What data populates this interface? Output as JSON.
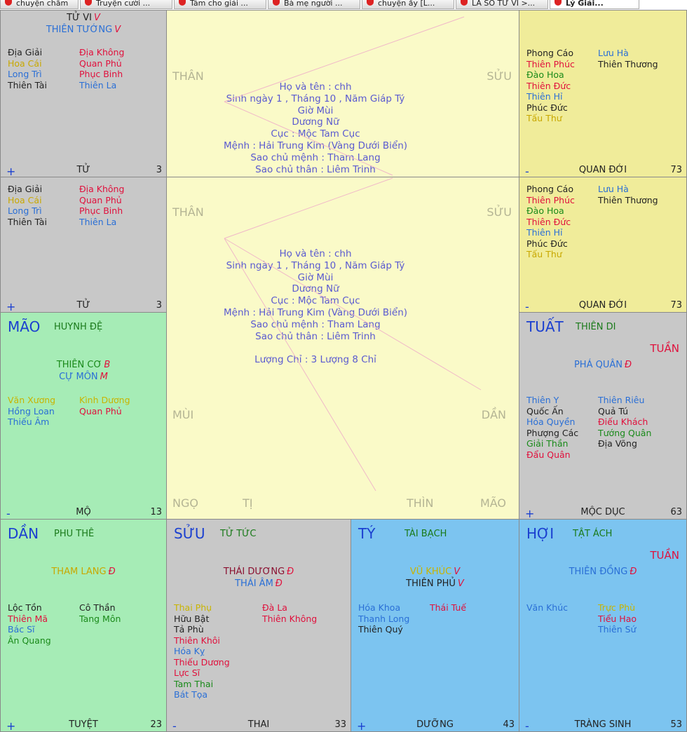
{
  "tabs": [
    "chuyện chăm ...",
    "Truyện cười ...",
    "Tám cho giải ...",
    "Bà mẹ người ...",
    "chuyện ấy [L...",
    "LÁ SỐ TỬ VI >...",
    "Lý Giải..."
  ],
  "palaces": [
    {
      "bg": "#c8c8c8",
      "main": [
        {
          "name": "TỬ VI",
          "grade": "V",
          "color": "#222222"
        },
        {
          "name": "THIÊN TƯỚNG",
          "grade": "V",
          "color": "#2a6fd6"
        }
      ],
      "left": [
        {
          "name": "Địa Giải",
          "color": "#222222"
        },
        {
          "name": "Hoa Cái",
          "color": "#c8a800"
        },
        {
          "name": "Long Trì",
          "color": "#2a6fd6"
        },
        {
          "name": "Thiên Tài",
          "color": "#222222"
        }
      ],
      "right": [
        {
          "name": "Địa Không",
          "color": "#e0103c"
        },
        {
          "name": "Quan Phủ",
          "color": "#e0103c"
        },
        {
          "name": "Phục Binh",
          "color": "#e0103c"
        },
        {
          "name": "Thiên La",
          "color": "#2a6fd6"
        }
      ],
      "sign": "+",
      "stage": "TỬ",
      "age": "3"
    },
    {
      "bg": "#f0ec9a",
      "left": [
        {
          "name": "Phong Cáo",
          "color": "#222222"
        },
        {
          "name": "Thiên Phúc",
          "color": "#e0103c"
        },
        {
          "name": "Đào Hoa",
          "color": "#1a8a1a"
        },
        {
          "name": "Thiên Đức",
          "color": "#e0103c"
        },
        {
          "name": "Thiên Hỉ",
          "color": "#2a6fd6"
        },
        {
          "name": "Phúc Đức",
          "color": "#222222"
        },
        {
          "name": "Tấu Thư",
          "color": "#c8a800"
        }
      ],
      "right": [
        {
          "name": "Lưu Hà",
          "color": "#2a6fd6"
        },
        {
          "name": "Thiên Thương",
          "color": "#222222"
        }
      ],
      "sign": "-",
      "stage": "QUAN ĐỚI",
      "age": "73"
    },
    {
      "bg": "#c8c8c8",
      "left": [
        {
          "name": "Địa Giải",
          "color": "#222222"
        },
        {
          "name": "Hoa Cái",
          "color": "#c8a800"
        },
        {
          "name": "Long Trì",
          "color": "#2a6fd6"
        },
        {
          "name": "Thiên Tài",
          "color": "#222222"
        }
      ],
      "right": [
        {
          "name": "Địa Không",
          "color": "#e0103c"
        },
        {
          "name": "Quan Phủ",
          "color": "#e0103c"
        },
        {
          "name": "Phục Binh",
          "color": "#e0103c"
        },
        {
          "name": "Thiên La",
          "color": "#2a6fd6"
        }
      ],
      "sign": "+",
      "stage": "TỬ",
      "age": "3"
    },
    {
      "bg": "#f0ec9a",
      "left": [
        {
          "name": "Phong Cáo",
          "color": "#222222"
        },
        {
          "name": "Thiên Phúc",
          "color": "#e0103c"
        },
        {
          "name": "Đào Hoa",
          "color": "#1a8a1a"
        },
        {
          "name": "Thiên Đức",
          "color": "#e0103c"
        },
        {
          "name": "Thiên Hỉ",
          "color": "#2a6fd6"
        },
        {
          "name": "Phúc Đức",
          "color": "#222222"
        },
        {
          "name": "Tấu Thư",
          "color": "#c8a800"
        }
      ],
      "right": [
        {
          "name": "Lưu Hà",
          "color": "#2a6fd6"
        },
        {
          "name": "Thiên Thương",
          "color": "#222222"
        }
      ],
      "sign": "-",
      "stage": "QUAN ĐỚI",
      "age": "73"
    },
    {
      "bg": "#a6ecb6",
      "branch": "MÃO",
      "palace": "HUYNH ĐỆ",
      "main": [
        {
          "name": "THIÊN CƠ",
          "grade": "B",
          "color": "#1a8a1a"
        },
        {
          "name": "CỰ MÔN",
          "grade": "M",
          "color": "#2a6fd6"
        }
      ],
      "left": [
        {
          "name": "Văn Xương",
          "color": "#c8b400"
        },
        {
          "name": "Hồng Loan",
          "color": "#2a6fd6"
        },
        {
          "name": "Thiếu Âm",
          "color": "#2a6fd6"
        }
      ],
      "right": [
        {
          "name": "Kình Dương",
          "color": "#c8b400"
        },
        {
          "name": "Quan Phủ",
          "color": "#e0103c"
        }
      ],
      "sign": "-",
      "stage": "MỘ",
      "age": "13"
    },
    {
      "bg": "#c8c8c8",
      "branch": "TUẤT",
      "palace": "THIÊN DI",
      "tuan": "TUẦN",
      "main": [
        {
          "name": "PHÁ QUÂN",
          "grade": "Đ",
          "color": "#2a6fd6"
        }
      ],
      "left": [
        {
          "name": "Thiên Y",
          "color": "#2a6fd6"
        },
        {
          "name": "Quốc Ấn",
          "color": "#222222"
        },
        {
          "name": "Hóa Quyền",
          "color": "#2a6fd6"
        },
        {
          "name": "Phượng Các",
          "color": "#222222"
        },
        {
          "name": "Giải Thần",
          "color": "#1a8a1a"
        },
        {
          "name": "Đẩu Quân",
          "color": "#e0103c"
        }
      ],
      "right": [
        {
          "name": "Thiên Riêu",
          "color": "#2a6fd6"
        },
        {
          "name": "Quả Tú",
          "color": "#222222"
        },
        {
          "name": "Điếu Khách",
          "color": "#e0103c"
        },
        {
          "name": "Tướng Quân",
          "color": "#1a8a1a"
        },
        {
          "name": "Địa Võng",
          "color": "#222222"
        }
      ],
      "sign": "+",
      "stage": "MỘC DỤC",
      "age": "63"
    },
    {
      "bg": "#a6ecb6",
      "branch": "DẦN",
      "palace": "PHU THÊ",
      "main": [
        {
          "name": "THAM LANG",
          "grade": "Đ",
          "color": "#c8a800"
        }
      ],
      "left": [
        {
          "name": "Lộc Tồn",
          "color": "#222222"
        },
        {
          "name": "Thiên Mã",
          "color": "#e0103c"
        },
        {
          "name": "Bác Sĩ",
          "color": "#2a6fd6"
        },
        {
          "name": "Ân Quang",
          "color": "#1a8a1a"
        }
      ],
      "right": [
        {
          "name": "Cô Thần",
          "color": "#222222"
        },
        {
          "name": "Tang Môn",
          "color": "#1a8a1a"
        }
      ],
      "sign": "+",
      "stage": "TUYỆT",
      "age": "23"
    },
    {
      "bg": "#c8c8c8",
      "branch": "SỬU",
      "palace": "TỬ TỨC",
      "main": [
        {
          "name": "THÁI DƯƠNG",
          "grade": "Đ",
          "color": "#8a1030"
        },
        {
          "name": "THÁI ÂM",
          "grade": "Đ",
          "color": "#2a6fd6"
        }
      ],
      "left": [
        {
          "name": "Thai Phụ",
          "color": "#c8b400"
        },
        {
          "name": "Hữu Bật",
          "color": "#222222"
        },
        {
          "name": "Tả Phù",
          "color": "#222222"
        },
        {
          "name": "Thiên Khôi",
          "color": "#e0103c"
        },
        {
          "name": "Hóa Kỵ",
          "color": "#2a6fd6"
        },
        {
          "name": "Thiếu Dương",
          "color": "#e0103c"
        },
        {
          "name": "Lực Sĩ",
          "color": "#e0103c"
        },
        {
          "name": "Tam Thai",
          "color": "#1a8a1a"
        },
        {
          "name": "Bát Tọa",
          "color": "#2a6fd6"
        }
      ],
      "right": [
        {
          "name": "Đà La",
          "color": "#e0103c"
        },
        {
          "name": "Thiên Không",
          "color": "#e0103c"
        }
      ],
      "sign": "-",
      "stage": "THAI",
      "age": "33"
    },
    {
      "bg": "#7cc4f0",
      "branch": "TÝ",
      "palace": "TÀI BẠCH",
      "main": [
        {
          "name": "VŨ KHÚC",
          "grade": "V",
          "color": "#c8b400"
        },
        {
          "name": "THIÊN PHỦ",
          "grade": "V",
          "color": "#222222"
        }
      ],
      "left": [
        {
          "name": "Hóa Khoa",
          "color": "#2a6fd6"
        },
        {
          "name": "Thanh Long",
          "color": "#2a6fd6"
        },
        {
          "name": "Thiên Quý",
          "color": "#222222"
        }
      ],
      "right": [
        {
          "name": "Thái Tuế",
          "color": "#e0103c"
        }
      ],
      "sign": "+",
      "stage": "DƯỠNG",
      "age": "43"
    },
    {
      "bg": "#7cc4f0",
      "branch": "HỢI",
      "palace": "TẬT ÁCH",
      "tuan": "TUẦN",
      "main": [
        {
          "name": "THIÊN ĐỒNG",
          "grade": "Đ",
          "color": "#2a6fd6"
        }
      ],
      "left": [
        {
          "name": "Văn Khúc",
          "color": "#2a6fd6"
        }
      ],
      "right": [
        {
          "name": "Trực Phù",
          "color": "#c8b400"
        },
        {
          "name": "Tiểu Hao",
          "color": "#e0103c"
        },
        {
          "name": "Thiên Sứ",
          "color": "#2a6fd6"
        }
      ],
      "sign": "-",
      "stage": "TRÀNG SINH",
      "age": "53"
    }
  ],
  "centers": [
    {
      "bg": "#fafac8",
      "corners": [
        "THÂN",
        "SỬU"
      ],
      "lines": [
        "Họ và tên : chh",
        "Sinh ngày 1 , Tháng 10 , Năm Giáp Tý",
        "Giờ Mùi",
        "Dương Nữ",
        "Cục : Mộc Tam Cục",
        "Mệnh : Hải Trung Kim (Vàng Dưới Biển)",
        "Sao chủ mệnh : Tham Lang",
        "Sao chủ thân : Liêm Trinh"
      ]
    },
    {
      "bg": "#fafac8",
      "corners": [
        "THÂN",
        "SỬU",
        "MÙI",
        "DẦN",
        "NGỌ",
        "TỊ",
        "THÌN",
        "MÃO"
      ],
      "lines": [
        "Họ và tên : chh",
        "Sinh ngày 1 , Tháng 10 , Năm Giáp Tý",
        "Giờ Mùi",
        "Dương Nữ",
        "Cục : Mộc Tam Cục",
        "Mệnh : Hải Trung Kim (Vàng Dưới Biển)",
        "Sao chủ mệnh : Tham Lang",
        "Sao chủ thân : Liêm Trinh"
      ],
      "note": "Lượng Chỉ : 3 Lượng 8 Chỉ"
    }
  ]
}
